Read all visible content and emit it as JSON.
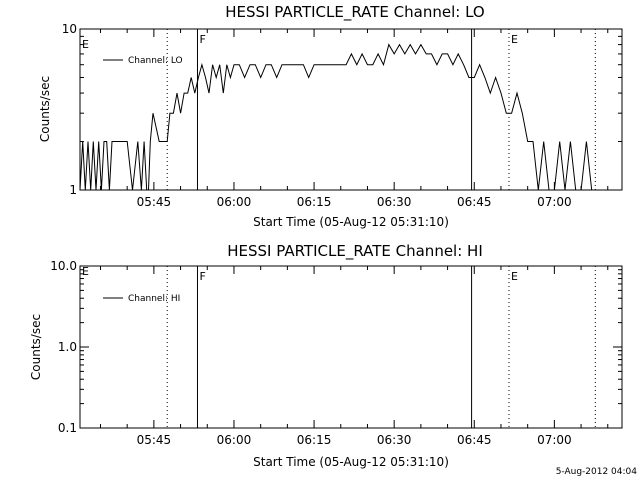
{
  "footer_stamp": "5-Aug-2012 04:04",
  "chart_data": [
    {
      "type": "line",
      "title": "HESSI PARTICLE_RATE Channel: LO",
      "xlabel": "Start Time (05-Aug-12 05:31:10)",
      "ylabel": "Counts/sec",
      "yscale": "log",
      "ylim": [
        1,
        10
      ],
      "ytick_labels": [
        "1",
        "10"
      ],
      "xlim": [
        "05:31:10",
        "07:12:40"
      ],
      "xticks": [
        "05:45",
        "06:00",
        "06:15",
        "06:30",
        "06:45",
        "07:00"
      ],
      "legend": "Channel: LO",
      "legend_position": "top-left",
      "event_lines": [
        {
          "time": "05:47:30",
          "style": "dotted",
          "label": ""
        },
        {
          "time": "05:53:10",
          "style": "solid",
          "label": "F"
        },
        {
          "time": "06:44:30",
          "style": "solid",
          "label": ""
        },
        {
          "time": "06:51:30",
          "style": "dotted",
          "label": "E"
        },
        {
          "time": "07:07:40",
          "style": "dotted",
          "label": ""
        }
      ],
      "left_edge_label": "E",
      "series": [
        {
          "name": "Channel: LO",
          "x": [
            "05:31:10",
            "05:31:40",
            "05:32:10",
            "05:32:40",
            "05:33:10",
            "05:33:40",
            "05:34:10",
            "05:34:40",
            "05:35:10",
            "05:35:40",
            "05:36:10",
            "05:36:40",
            "05:37:10",
            "05:37:40",
            "05:38:10",
            "05:39:00",
            "05:40:00",
            "05:41:00",
            "05:42:00",
            "05:42:40",
            "05:43:10",
            "05:43:40",
            "05:44:00",
            "05:44:20",
            "05:44:50",
            "05:46:00",
            "05:47:30",
            "05:48:00",
            "05:48:40",
            "05:49:20",
            "05:50:00",
            "05:50:40",
            "05:51:20",
            "05:52:00",
            "05:52:40",
            "05:53:20",
            "05:54:00",
            "05:54:40",
            "05:55:20",
            "05:56:00",
            "05:56:40",
            "05:57:20",
            "05:58:00",
            "05:58:40",
            "05:59:20",
            "06:00:00",
            "06:01:00",
            "06:02:00",
            "06:03:00",
            "06:04:00",
            "06:05:00",
            "06:06:00",
            "06:07:00",
            "06:08:00",
            "06:09:00",
            "06:10:00",
            "06:11:00",
            "06:12:00",
            "06:13:00",
            "06:14:00",
            "06:15:00",
            "06:16:00",
            "06:17:00",
            "06:18:00",
            "06:19:00",
            "06:20:00",
            "06:21:00",
            "06:22:00",
            "06:23:00",
            "06:24:00",
            "06:25:00",
            "06:26:00",
            "06:27:00",
            "06:28:00",
            "06:29:00",
            "06:30:00",
            "06:31:00",
            "06:32:00",
            "06:33:00",
            "06:34:00",
            "06:35:00",
            "06:36:00",
            "06:37:00",
            "06:38:00",
            "06:39:00",
            "06:40:00",
            "06:41:00",
            "06:42:00",
            "06:43:00",
            "06:44:00",
            "06:45:00",
            "06:46:00",
            "06:47:00",
            "06:48:00",
            "06:49:00",
            "06:50:00",
            "06:51:00",
            "06:52:00",
            "06:53:00",
            "06:54:00",
            "06:55:00",
            "06:56:00",
            "06:57:00",
            "06:58:00",
            "06:59:00",
            "07:00:00",
            "07:01:00",
            "07:02:00",
            "07:03:00",
            "07:04:00",
            "07:05:00",
            "07:06:00",
            "07:07:00",
            "07:08:00",
            "07:09:00"
          ],
          "values": [
            1,
            2,
            1,
            2,
            1,
            2,
            1,
            2,
            1,
            2,
            2,
            1,
            2,
            2,
            2,
            2,
            2,
            1,
            2,
            1,
            2,
            1,
            1,
            2,
            3,
            2,
            2,
            3,
            3,
            4,
            3,
            4,
            4,
            5,
            4,
            5,
            6,
            5,
            4,
            6,
            5,
            6,
            4,
            6,
            5,
            6,
            6,
            5,
            6,
            6,
            5,
            6,
            6,
            5,
            6,
            6,
            6,
            6,
            6,
            5,
            6,
            6,
            6,
            6,
            6,
            6,
            6,
            7,
            6,
            7,
            6,
            6,
            7,
            6,
            8,
            7,
            8,
            7,
            8,
            7,
            8,
            7,
            7,
            6,
            7,
            7,
            6,
            7,
            6,
            5,
            5,
            6,
            5,
            4,
            5,
            4,
            3,
            3,
            4,
            3,
            2,
            2,
            1,
            2,
            1,
            1,
            2,
            1,
            2,
            1,
            1,
            2,
            1,
            1,
            1
          ]
        }
      ]
    },
    {
      "type": "line",
      "title": "HESSI PARTICLE_RATE Channel: HI",
      "xlabel": "Start Time (05-Aug-12 05:31:10)",
      "ylabel": "Counts/sec",
      "yscale": "log",
      "ylim": [
        0.1,
        10.0
      ],
      "ytick_labels": [
        "0.1",
        "1.0",
        "10.0"
      ],
      "xlim": [
        "05:31:10",
        "07:12:40"
      ],
      "xticks": [
        "05:45",
        "06:00",
        "06:15",
        "06:30",
        "06:45",
        "07:00"
      ],
      "legend": "Channel: HI",
      "legend_position": "top-left",
      "event_lines": [
        {
          "time": "05:47:30",
          "style": "dotted",
          "label": ""
        },
        {
          "time": "05:53:10",
          "style": "solid",
          "label": "F"
        },
        {
          "time": "06:44:30",
          "style": "solid",
          "label": ""
        },
        {
          "time": "06:51:30",
          "style": "dotted",
          "label": "E"
        },
        {
          "time": "07:07:40",
          "style": "dotted",
          "label": ""
        }
      ],
      "left_edge_label": "E",
      "series": [
        {
          "name": "Channel: HI",
          "x": [],
          "values": []
        }
      ]
    }
  ]
}
